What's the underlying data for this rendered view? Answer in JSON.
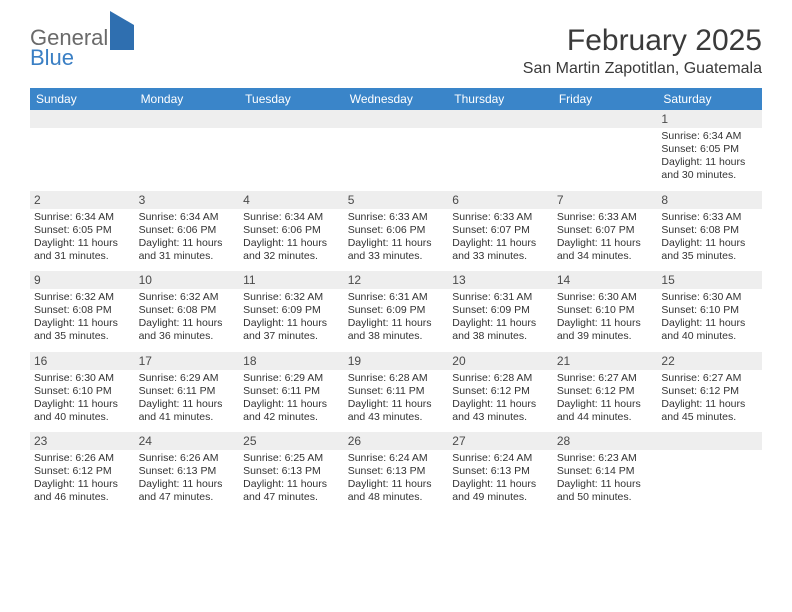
{
  "logo": {
    "word1": "General",
    "word2": "Blue"
  },
  "title": "February 2025",
  "location": "San Martin Zapotitlan, Guatemala",
  "colors": {
    "header_bg": "#3a85c9",
    "header_text": "#ffffff",
    "daynum_bg": "#eeeeee",
    "text": "#333333",
    "logo_gray": "#6a6a6a",
    "logo_blue": "#3a7fc4"
  },
  "dow": [
    "Sunday",
    "Monday",
    "Tuesday",
    "Wednesday",
    "Thursday",
    "Friday",
    "Saturday"
  ],
  "weeks": [
    [
      {
        "n": "",
        "t": ""
      },
      {
        "n": "",
        "t": ""
      },
      {
        "n": "",
        "t": ""
      },
      {
        "n": "",
        "t": ""
      },
      {
        "n": "",
        "t": ""
      },
      {
        "n": "",
        "t": ""
      },
      {
        "n": "1",
        "t": "Sunrise: 6:34 AM\nSunset: 6:05 PM\nDaylight: 11 hours and 30 minutes."
      }
    ],
    [
      {
        "n": "2",
        "t": "Sunrise: 6:34 AM\nSunset: 6:05 PM\nDaylight: 11 hours and 31 minutes."
      },
      {
        "n": "3",
        "t": "Sunrise: 6:34 AM\nSunset: 6:06 PM\nDaylight: 11 hours and 31 minutes."
      },
      {
        "n": "4",
        "t": "Sunrise: 6:34 AM\nSunset: 6:06 PM\nDaylight: 11 hours and 32 minutes."
      },
      {
        "n": "5",
        "t": "Sunrise: 6:33 AM\nSunset: 6:06 PM\nDaylight: 11 hours and 33 minutes."
      },
      {
        "n": "6",
        "t": "Sunrise: 6:33 AM\nSunset: 6:07 PM\nDaylight: 11 hours and 33 minutes."
      },
      {
        "n": "7",
        "t": "Sunrise: 6:33 AM\nSunset: 6:07 PM\nDaylight: 11 hours and 34 minutes."
      },
      {
        "n": "8",
        "t": "Sunrise: 6:33 AM\nSunset: 6:08 PM\nDaylight: 11 hours and 35 minutes."
      }
    ],
    [
      {
        "n": "9",
        "t": "Sunrise: 6:32 AM\nSunset: 6:08 PM\nDaylight: 11 hours and 35 minutes."
      },
      {
        "n": "10",
        "t": "Sunrise: 6:32 AM\nSunset: 6:08 PM\nDaylight: 11 hours and 36 minutes."
      },
      {
        "n": "11",
        "t": "Sunrise: 6:32 AM\nSunset: 6:09 PM\nDaylight: 11 hours and 37 minutes."
      },
      {
        "n": "12",
        "t": "Sunrise: 6:31 AM\nSunset: 6:09 PM\nDaylight: 11 hours and 38 minutes."
      },
      {
        "n": "13",
        "t": "Sunrise: 6:31 AM\nSunset: 6:09 PM\nDaylight: 11 hours and 38 minutes."
      },
      {
        "n": "14",
        "t": "Sunrise: 6:30 AM\nSunset: 6:10 PM\nDaylight: 11 hours and 39 minutes."
      },
      {
        "n": "15",
        "t": "Sunrise: 6:30 AM\nSunset: 6:10 PM\nDaylight: 11 hours and 40 minutes."
      }
    ],
    [
      {
        "n": "16",
        "t": "Sunrise: 6:30 AM\nSunset: 6:10 PM\nDaylight: 11 hours and 40 minutes."
      },
      {
        "n": "17",
        "t": "Sunrise: 6:29 AM\nSunset: 6:11 PM\nDaylight: 11 hours and 41 minutes."
      },
      {
        "n": "18",
        "t": "Sunrise: 6:29 AM\nSunset: 6:11 PM\nDaylight: 11 hours and 42 minutes."
      },
      {
        "n": "19",
        "t": "Sunrise: 6:28 AM\nSunset: 6:11 PM\nDaylight: 11 hours and 43 minutes."
      },
      {
        "n": "20",
        "t": "Sunrise: 6:28 AM\nSunset: 6:12 PM\nDaylight: 11 hours and 43 minutes."
      },
      {
        "n": "21",
        "t": "Sunrise: 6:27 AM\nSunset: 6:12 PM\nDaylight: 11 hours and 44 minutes."
      },
      {
        "n": "22",
        "t": "Sunrise: 6:27 AM\nSunset: 6:12 PM\nDaylight: 11 hours and 45 minutes."
      }
    ],
    [
      {
        "n": "23",
        "t": "Sunrise: 6:26 AM\nSunset: 6:12 PM\nDaylight: 11 hours and 46 minutes."
      },
      {
        "n": "24",
        "t": "Sunrise: 6:26 AM\nSunset: 6:13 PM\nDaylight: 11 hours and 47 minutes."
      },
      {
        "n": "25",
        "t": "Sunrise: 6:25 AM\nSunset: 6:13 PM\nDaylight: 11 hours and 47 minutes."
      },
      {
        "n": "26",
        "t": "Sunrise: 6:24 AM\nSunset: 6:13 PM\nDaylight: 11 hours and 48 minutes."
      },
      {
        "n": "27",
        "t": "Sunrise: 6:24 AM\nSunset: 6:13 PM\nDaylight: 11 hours and 49 minutes."
      },
      {
        "n": "28",
        "t": "Sunrise: 6:23 AM\nSunset: 6:14 PM\nDaylight: 11 hours and 50 minutes."
      },
      {
        "n": "",
        "t": ""
      }
    ]
  ]
}
